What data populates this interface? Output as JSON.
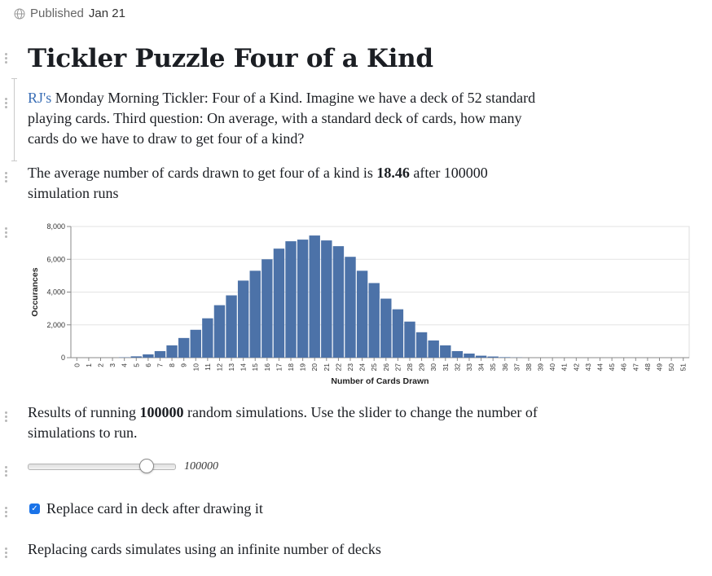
{
  "header": {
    "published_label": "Published",
    "published_date": "Jan 21"
  },
  "title": "Tickler Puzzle Four of a Kind",
  "intro": {
    "link_text": "RJ's",
    "text": " Monday Morning Tickler: Four of a Kind. Imagine we have a deck of 52 standard playing cards. Third question: On average, with a standard deck of cards, how many cards do we have to draw to get four of a kind?"
  },
  "result": {
    "prefix": "The average number of cards drawn to get four of a kind is ",
    "value": "18.46",
    "suffix": " after 100000 simulation runs"
  },
  "chart_data": {
    "type": "bar",
    "xlabel": "Number of Cards Drawn",
    "ylabel": "Occurances",
    "ylim": [
      0,
      8000
    ],
    "yticks": [
      0,
      2000,
      4000,
      6000,
      8000
    ],
    "ytick_labels": [
      "0",
      "2,000",
      "4,000",
      "6,000",
      "8,000"
    ],
    "grid": true,
    "bar_color": "#4c72a8",
    "categories": [
      "0",
      "1",
      "2",
      "3",
      "4",
      "5",
      "6",
      "7",
      "8",
      "9",
      "10",
      "11",
      "12",
      "13",
      "14",
      "15",
      "16",
      "17",
      "18",
      "19",
      "20",
      "21",
      "22",
      "23",
      "24",
      "25",
      "26",
      "27",
      "28",
      "29",
      "30",
      "31",
      "32",
      "33",
      "34",
      "35",
      "36",
      "37",
      "38",
      "39",
      "40",
      "41",
      "42",
      "43",
      "44",
      "45",
      "46",
      "47",
      "48",
      "49",
      "50",
      "51"
    ],
    "values": [
      0,
      0,
      0,
      0,
      20,
      80,
      200,
      400,
      750,
      1200,
      1700,
      2400,
      3200,
      3800,
      4700,
      5300,
      6000,
      6650,
      7100,
      7200,
      7450,
      7150,
      6800,
      6150,
      5300,
      4550,
      3600,
      2950,
      2200,
      1550,
      1050,
      750,
      400,
      250,
      120,
      70,
      30,
      10,
      0,
      0,
      0,
      0,
      0,
      0,
      0,
      0,
      0,
      0,
      0,
      0,
      0,
      0
    ]
  },
  "simulations": {
    "prefix": "Results of running ",
    "count": "100000",
    "suffix": " random simulations. Use the slider to change the number of simulations to run."
  },
  "slider": {
    "value_label": "100000",
    "fraction": 0.8
  },
  "replace_checkbox": {
    "label": "Replace card in deck after drawing it",
    "checked": true
  },
  "footer_note": "Replacing cards simulates using an infinite number of decks"
}
